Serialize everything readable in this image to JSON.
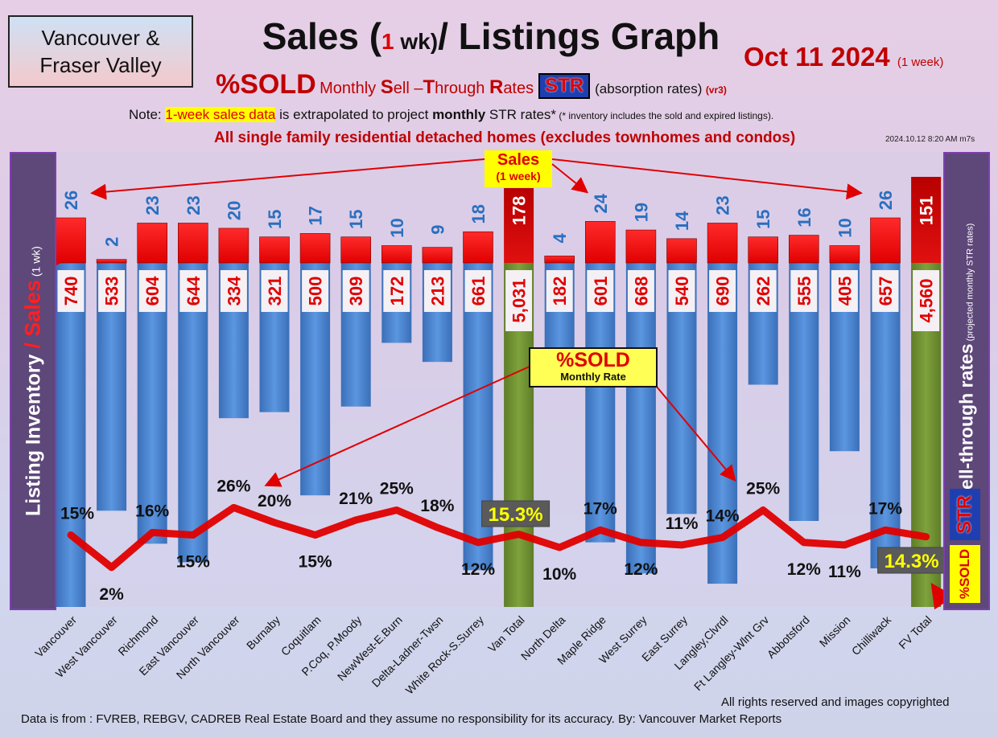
{
  "header": {
    "region": "Vancouver &\nFraser Valley",
    "title_part1": "Sales (",
    "title_num": "1",
    "title_unit": " wk)",
    "title_part2": "/ Listings Graph",
    "date": "Oct 11  2024",
    "date_sub": "(1 week)",
    "subtitle_main": "%SOLD",
    "subtitle_rates_1": "Monthly ",
    "subtitle_rates_2": "S",
    "subtitle_rates_3": "ell –",
    "subtitle_rates_4": "T",
    "subtitle_rates_5": "hrough ",
    "subtitle_rates_6": "R",
    "subtitle_rates_7": "ates",
    "str_badge": "STR",
    "absorption": "(absorption rates)",
    "version": "(vr3)",
    "note_prefix": "Note: ",
    "note_highlight": "1-week sales data",
    "note_mid": " is extrapolated to project ",
    "note_bold": "monthly",
    "note_after": " STR rates*",
    "note_small": " (* inventory includes the sold and expired listings).",
    "homes_line": "All single family residential detached homes (excludes townhomes and condos)",
    "timestamp": "2024.10.12 8:20 AM m7s"
  },
  "side_labels": {
    "left_main": "Listing Inventory ",
    "left_slash": "/ ",
    "left_sales": "Sales",
    "left_small": " (1 wk)",
    "right_main": "Sell-through rates",
    "right_small": " (projected monthly STR rates)",
    "right_str": "STR",
    "right_sold": "%SOLD"
  },
  "callouts": {
    "sales_l1": "Sales",
    "sales_l2": "(1 week)",
    "sold_l1": "%SOLD",
    "sold_l2": "Monthly Rate"
  },
  "footer": {
    "copyright": "All rights reserved and  images copyrighted",
    "source": "Data is from : FVREB, REBGV, CADREB Real Estate Board and they assume no responsibility for its accuracy. By: Vancouver Market Reports"
  },
  "chart_data": {
    "type": "bar",
    "categories": [
      "Vancouver",
      "West Vancouver",
      "Richmond",
      "East Vancouver",
      "North Vancouver",
      "Burnaby",
      "Coquitlam",
      "P.Coq, P.Moody",
      "NewWest-E.Burn",
      "Delta-Ladner-Twsn",
      "White Rock-S.Surrey",
      "Van Total",
      "North Delta",
      "Maple Ridge",
      "West Surrey",
      "East Surrey",
      "Langley,Clvrdl",
      "Ft Langley-Wlnt Grv",
      "Abbotsford",
      "Mission",
      "Chilliwack",
      "FV Total"
    ],
    "series": [
      {
        "name": "Sales",
        "values": [
          26,
          2,
          23,
          23,
          20,
          15,
          17,
          15,
          10,
          9,
          18,
          178,
          4,
          24,
          19,
          14,
          23,
          15,
          16,
          10,
          26,
          151
        ]
      },
      {
        "name": "Listing Inventory",
        "values": [
          740,
          533,
          604,
          644,
          334,
          321,
          500,
          309,
          172,
          213,
          661,
          5031,
          182,
          601,
          668,
          540,
          690,
          262,
          555,
          405,
          657,
          4560
        ]
      },
      {
        "name": "%SOLD",
        "values": [
          15,
          2,
          16,
          15,
          26,
          20,
          15,
          21,
          25,
          18,
          12,
          15.3,
          10,
          17,
          12,
          11,
          14,
          25,
          12,
          11,
          17,
          14.3
        ]
      }
    ],
    "listing_labels": [
      "740",
      "533",
      "604",
      "644",
      "334",
      "321",
      "500",
      "309",
      "172",
      "213",
      "661",
      "5,031",
      "182",
      "601",
      "668",
      "540",
      "690",
      "262",
      "555",
      "405",
      "657",
      "4,560"
    ],
    "rate_labels": [
      "15%",
      "2%",
      "16%",
      "15%",
      "26%",
      "20%",
      "15%",
      "21%",
      "25%",
      "18%",
      "12%",
      "15.3%",
      "10%",
      "17%",
      "12%",
      "11%",
      "14%",
      "25%",
      "12%",
      "11%",
      "17%",
      "14.3%"
    ],
    "totals": [
      11,
      21
    ],
    "colors": {
      "sales": "#ff0000",
      "sales_total": "#c00000",
      "listings": "#4a86d4",
      "listings_total": "#6f8f32",
      "rate_line": "#e00000"
    }
  }
}
